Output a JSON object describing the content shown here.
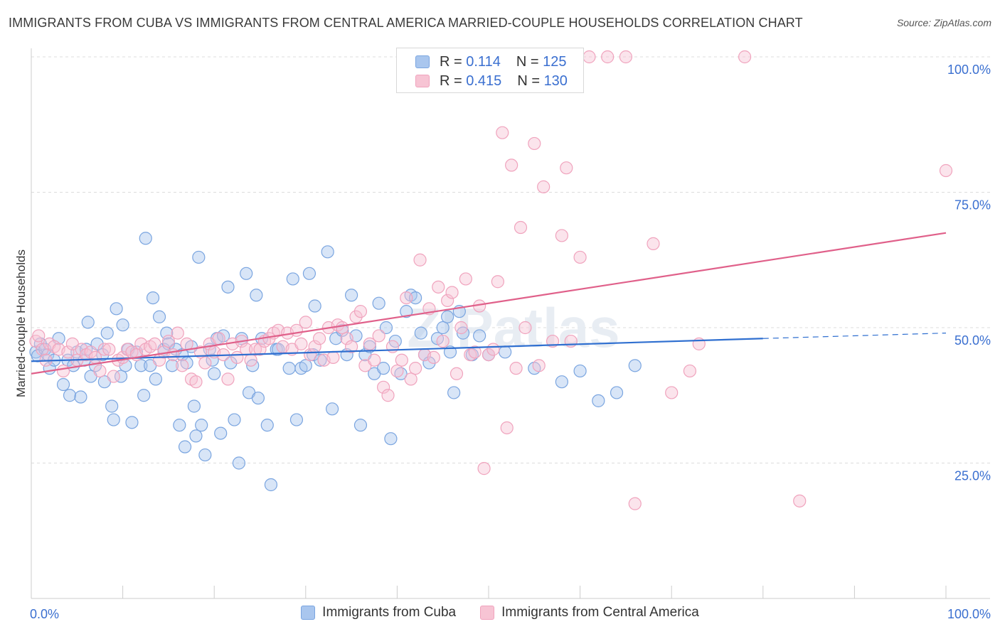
{
  "chart_data": {
    "type": "scatter",
    "title": "IMMIGRANTS FROM CUBA VS IMMIGRANTS FROM CENTRAL AMERICA MARRIED-COUPLE HOUSEHOLDS CORRELATION CHART",
    "source": "Source: ZipAtlas.com",
    "watermark": "ZIPatlas",
    "xlabel": "",
    "ylabel": "Married-couple Households",
    "xlim": [
      0,
      100
    ],
    "ylim": [
      0,
      100
    ],
    "x_tick_labels": [
      "0.0%",
      "100.0%"
    ],
    "y_tick_labels": [
      "25.0%",
      "50.0%",
      "75.0%",
      "100.0%"
    ],
    "y_ticks": [
      25,
      50,
      75,
      100
    ],
    "legend_stats": [
      {
        "r_label": "R =",
        "r_value": "0.114",
        "n_label": "N =",
        "n_value": "125"
      },
      {
        "r_label": "R =",
        "r_value": "0.415",
        "n_label": "N =",
        "n_value": "130"
      }
    ],
    "series": [
      {
        "name": "Immigrants from Cuba",
        "color": "#7aa5e0",
        "fill": "#a9c6ee",
        "trend_color": "#2f6fd0",
        "trend": {
          "x0": 0,
          "y0": 43.8,
          "x1": 80,
          "y1": 48.0,
          "dash_to_x": 100,
          "dash_to_y": 49.0
        },
        "points": [
          [
            0.5,
            45.5
          ],
          [
            0.7,
            44.8
          ],
          [
            1,
            47
          ],
          [
            1.5,
            46
          ],
          [
            1.8,
            45
          ],
          [
            2,
            42.5
          ],
          [
            2.5,
            44
          ],
          [
            3,
            48
          ],
          [
            3.5,
            39.5
          ],
          [
            4,
            44
          ],
          [
            4.2,
            37.5
          ],
          [
            4.6,
            43
          ],
          [
            5,
            45.5
          ],
          [
            5.4,
            37.2
          ],
          [
            5.8,
            44
          ],
          [
            6,
            46
          ],
          [
            6.2,
            51
          ],
          [
            6.5,
            41
          ],
          [
            7,
            43
          ],
          [
            7.2,
            47
          ],
          [
            7.8,
            45
          ],
          [
            8,
            40
          ],
          [
            8.3,
            49
          ],
          [
            8.8,
            35.5
          ],
          [
            9,
            33
          ],
          [
            9.3,
            53.5
          ],
          [
            9.8,
            41
          ],
          [
            10,
            50.5
          ],
          [
            10.3,
            43
          ],
          [
            10.6,
            46
          ],
          [
            11,
            32.5
          ],
          [
            11.5,
            45.5
          ],
          [
            12,
            43
          ],
          [
            12.3,
            37.5
          ],
          [
            12.5,
            66.5
          ],
          [
            13,
            43
          ],
          [
            13.3,
            55.5
          ],
          [
            13.6,
            40.5
          ],
          [
            14,
            52
          ],
          [
            14.5,
            46
          ],
          [
            14.8,
            49
          ],
          [
            15,
            47
          ],
          [
            15.4,
            43
          ],
          [
            15.8,
            46
          ],
          [
            16.2,
            32
          ],
          [
            16.5,
            45
          ],
          [
            16.8,
            28
          ],
          [
            17,
            43.5
          ],
          [
            17.5,
            46.5
          ],
          [
            17.8,
            35.5
          ],
          [
            18,
            30
          ],
          [
            18.3,
            63
          ],
          [
            18.6,
            32
          ],
          [
            19,
            26.5
          ],
          [
            19.5,
            46
          ],
          [
            19.8,
            44
          ],
          [
            20,
            41.5
          ],
          [
            20.3,
            48
          ],
          [
            20.7,
            30.5
          ],
          [
            21,
            48.5
          ],
          [
            21.5,
            57.5
          ],
          [
            21.8,
            43.5
          ],
          [
            22.2,
            33
          ],
          [
            22.7,
            25
          ],
          [
            23,
            48
          ],
          [
            23.5,
            60
          ],
          [
            23.8,
            38
          ],
          [
            24.2,
            43
          ],
          [
            24.6,
            56
          ],
          [
            24.8,
            37
          ],
          [
            25.2,
            48
          ],
          [
            25.8,
            32
          ],
          [
            26.2,
            21
          ],
          [
            26.8,
            46
          ],
          [
            27,
            46
          ],
          [
            28.2,
            42.5
          ],
          [
            28.6,
            59
          ],
          [
            29,
            33
          ],
          [
            29.5,
            42.5
          ],
          [
            30,
            43
          ],
          [
            30.4,
            60
          ],
          [
            30.8,
            45
          ],
          [
            31,
            54
          ],
          [
            31.6,
            44
          ],
          [
            32.4,
            64
          ],
          [
            32.9,
            35
          ],
          [
            33.3,
            48
          ],
          [
            34,
            49.5
          ],
          [
            34.5,
            45
          ],
          [
            35,
            56
          ],
          [
            35.5,
            48.5
          ],
          [
            36,
            32
          ],
          [
            36.5,
            45
          ],
          [
            37,
            46.5
          ],
          [
            37.5,
            41.5
          ],
          [
            38,
            54.5
          ],
          [
            38.5,
            42.5
          ],
          [
            38.8,
            50
          ],
          [
            39.3,
            29.5
          ],
          [
            39.8,
            47.5
          ],
          [
            40.4,
            41.5
          ],
          [
            41,
            53
          ],
          [
            41.5,
            56
          ],
          [
            42,
            55.5
          ],
          [
            42.6,
            49
          ],
          [
            43,
            45
          ],
          [
            43.5,
            43.5
          ],
          [
            44.4,
            48
          ],
          [
            45,
            50
          ],
          [
            45.5,
            52
          ],
          [
            45.8,
            45.5
          ],
          [
            46.2,
            38
          ],
          [
            46.8,
            53
          ],
          [
            47.2,
            49
          ],
          [
            48.2,
            45
          ],
          [
            49,
            48.5
          ],
          [
            50,
            45
          ],
          [
            51.8,
            45.5
          ],
          [
            55,
            42.5
          ],
          [
            58,
            40
          ],
          [
            60,
            42
          ],
          [
            62,
            36.5
          ],
          [
            64,
            38
          ],
          [
            66,
            43
          ]
        ]
      },
      {
        "name": "Immigrants from Central America",
        "color": "#f0a3bd",
        "fill": "#f7c4d4",
        "trend_color": "#e0608a",
        "trend": {
          "x0": 0,
          "y0": 41.5,
          "x1": 100,
          "y1": 67.5
        },
        "points": [
          [
            0.5,
            47.5
          ],
          [
            0.8,
            48.5
          ],
          [
            1.2,
            46
          ],
          [
            1.6,
            44
          ],
          [
            2,
            47
          ],
          [
            2.5,
            46.5
          ],
          [
            3,
            46
          ],
          [
            3.5,
            42
          ],
          [
            4,
            45.5
          ],
          [
            4.5,
            47
          ],
          [
            5,
            44
          ],
          [
            5.5,
            46
          ],
          [
            6,
            45
          ],
          [
            6.5,
            45.5
          ],
          [
            7,
            44.5
          ],
          [
            7.5,
            42
          ],
          [
            8,
            46
          ],
          [
            8.5,
            46
          ],
          [
            9,
            41
          ],
          [
            9.5,
            44
          ],
          [
            10,
            44.5
          ],
          [
            10.5,
            46
          ],
          [
            11,
            45.5
          ],
          [
            11.5,
            45
          ],
          [
            12,
            47
          ],
          [
            12.5,
            46
          ],
          [
            13,
            46.5
          ],
          [
            13.5,
            47
          ],
          [
            14,
            44
          ],
          [
            14.5,
            45.5
          ],
          [
            15,
            47.5
          ],
          [
            15.5,
            45
          ],
          [
            16,
            49
          ],
          [
            16.5,
            43
          ],
          [
            17,
            47
          ],
          [
            17.5,
            40.5
          ],
          [
            18,
            40
          ],
          [
            18.5,
            45.5
          ],
          [
            19,
            43.5
          ],
          [
            19.5,
            47
          ],
          [
            20,
            45.5
          ],
          [
            20.5,
            48
          ],
          [
            21,
            45
          ],
          [
            21.5,
            40.5
          ],
          [
            22,
            47
          ],
          [
            22.5,
            44.5
          ],
          [
            23,
            47.5
          ],
          [
            23.5,
            46
          ],
          [
            24,
            44
          ],
          [
            24.5,
            46
          ],
          [
            25,
            46
          ],
          [
            25.5,
            47.5
          ],
          [
            26,
            48
          ],
          [
            26.5,
            49
          ],
          [
            27,
            49.5
          ],
          [
            27.5,
            46.5
          ],
          [
            28,
            49
          ],
          [
            28.5,
            46
          ],
          [
            29,
            49.5
          ],
          [
            29.5,
            47
          ],
          [
            30,
            51
          ],
          [
            30.5,
            45
          ],
          [
            31,
            46.5
          ],
          [
            31.5,
            48
          ],
          [
            32,
            44
          ],
          [
            32.5,
            50
          ],
          [
            33,
            44.5
          ],
          [
            33.5,
            50.5
          ],
          [
            34,
            50
          ],
          [
            34.5,
            48
          ],
          [
            35,
            46.5
          ],
          [
            35.5,
            52
          ],
          [
            36,
            53
          ],
          [
            36.5,
            43
          ],
          [
            37,
            47
          ],
          [
            37.5,
            44
          ],
          [
            38,
            48.5
          ],
          [
            38.5,
            39
          ],
          [
            39,
            37.5
          ],
          [
            39.5,
            46.5
          ],
          [
            40,
            42
          ],
          [
            40.5,
            44
          ],
          [
            41,
            55.5
          ],
          [
            41.5,
            40.5
          ],
          [
            42,
            42.5
          ],
          [
            42.5,
            62.5
          ],
          [
            43,
            45
          ],
          [
            43.5,
            53.5
          ],
          [
            44,
            44.5
          ],
          [
            44.5,
            57.5
          ],
          [
            45,
            47.5
          ],
          [
            45.5,
            55
          ],
          [
            46,
            56.5
          ],
          [
            46.5,
            41.5
          ],
          [
            47,
            50
          ],
          [
            47.5,
            59
          ],
          [
            48,
            45
          ],
          [
            48.5,
            45.5
          ],
          [
            49,
            54
          ],
          [
            49.5,
            24
          ],
          [
            50,
            45
          ],
          [
            50.5,
            46
          ],
          [
            51,
            58.5
          ],
          [
            51.5,
            86
          ],
          [
            52,
            31.5
          ],
          [
            52.5,
            80
          ],
          [
            53,
            42.5
          ],
          [
            53.5,
            68.5
          ],
          [
            54,
            50
          ],
          [
            55,
            84
          ],
          [
            55.5,
            43
          ],
          [
            56,
            76
          ],
          [
            57,
            47.5
          ],
          [
            58,
            67
          ],
          [
            58.5,
            79.5
          ],
          [
            59,
            47.5
          ],
          [
            60,
            63
          ],
          [
            61,
            100
          ],
          [
            63,
            100
          ],
          [
            65,
            100
          ],
          [
            66,
            17.5
          ],
          [
            68,
            65.5
          ],
          [
            70,
            38
          ],
          [
            72,
            42
          ],
          [
            73,
            47
          ],
          [
            78,
            100
          ],
          [
            84,
            18
          ],
          [
            100,
            79
          ]
        ]
      }
    ]
  }
}
